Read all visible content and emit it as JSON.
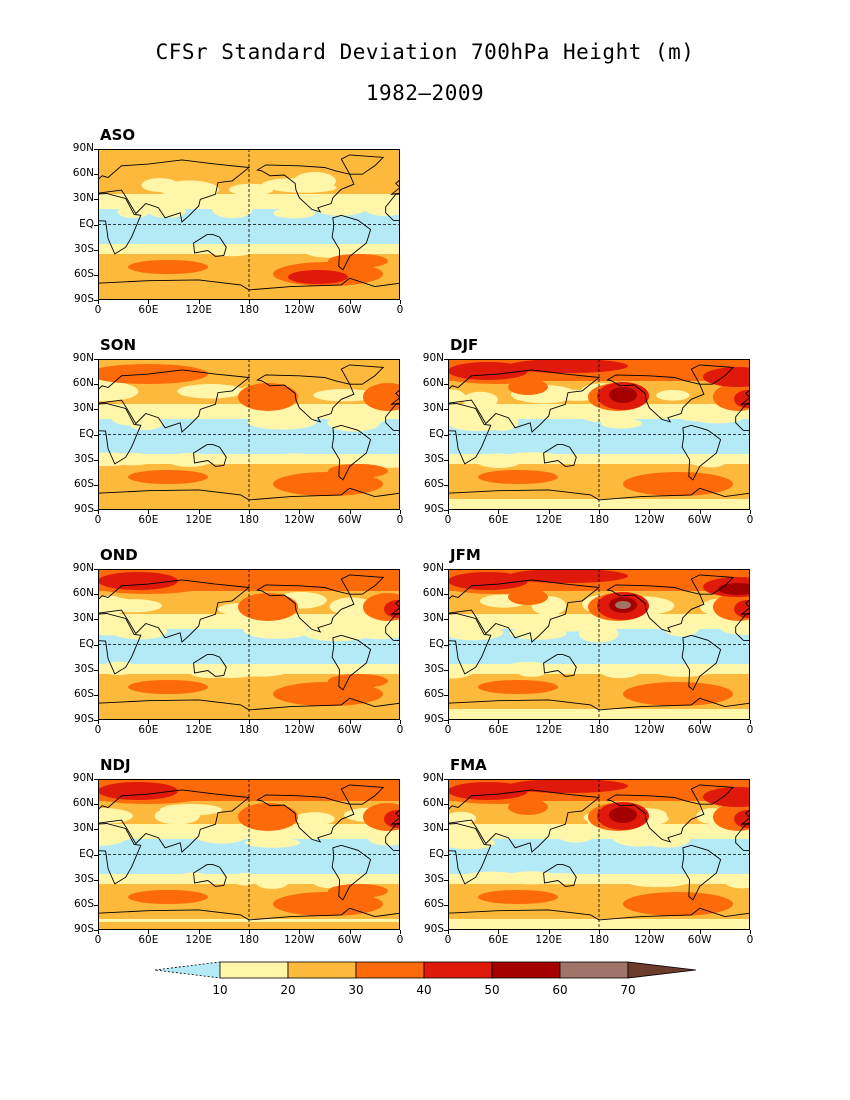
{
  "title": "CFSr Standard Deviation 700hPa Height (m)",
  "subtitle": "1982–2009",
  "y_ticks": [
    "90N",
    "60N",
    "30N",
    "EQ",
    "30S",
    "60S",
    "90S"
  ],
  "x_ticks": [
    "0",
    "60E",
    "120E",
    "180",
    "120W",
    "60W",
    "0"
  ],
  "panels": [
    {
      "label": "ASO",
      "col": 0,
      "row": 0,
      "strength": 0
    },
    {
      "label": "SON",
      "col": 0,
      "row": 1,
      "strength": 1
    },
    {
      "label": "DJF",
      "col": 1,
      "row": 1,
      "strength": 4
    },
    {
      "label": "OND",
      "col": 0,
      "row": 2,
      "strength": 2
    },
    {
      "label": "JFM",
      "col": 1,
      "row": 2,
      "strength": 5
    },
    {
      "label": "NDJ",
      "col": 0,
      "row": 3,
      "strength": 3
    },
    {
      "label": "FMA",
      "col": 1,
      "row": 3,
      "strength": 4
    }
  ],
  "colorbar": {
    "levels": [
      "10",
      "20",
      "30",
      "40",
      "50",
      "60",
      "70"
    ],
    "colors": [
      "#b4eaf5",
      "#fff6aa",
      "#fcb93c",
      "#fc6a0a",
      "#e01a0a",
      "#a50000",
      "#a07468",
      "#6e3c2c"
    ]
  }
}
